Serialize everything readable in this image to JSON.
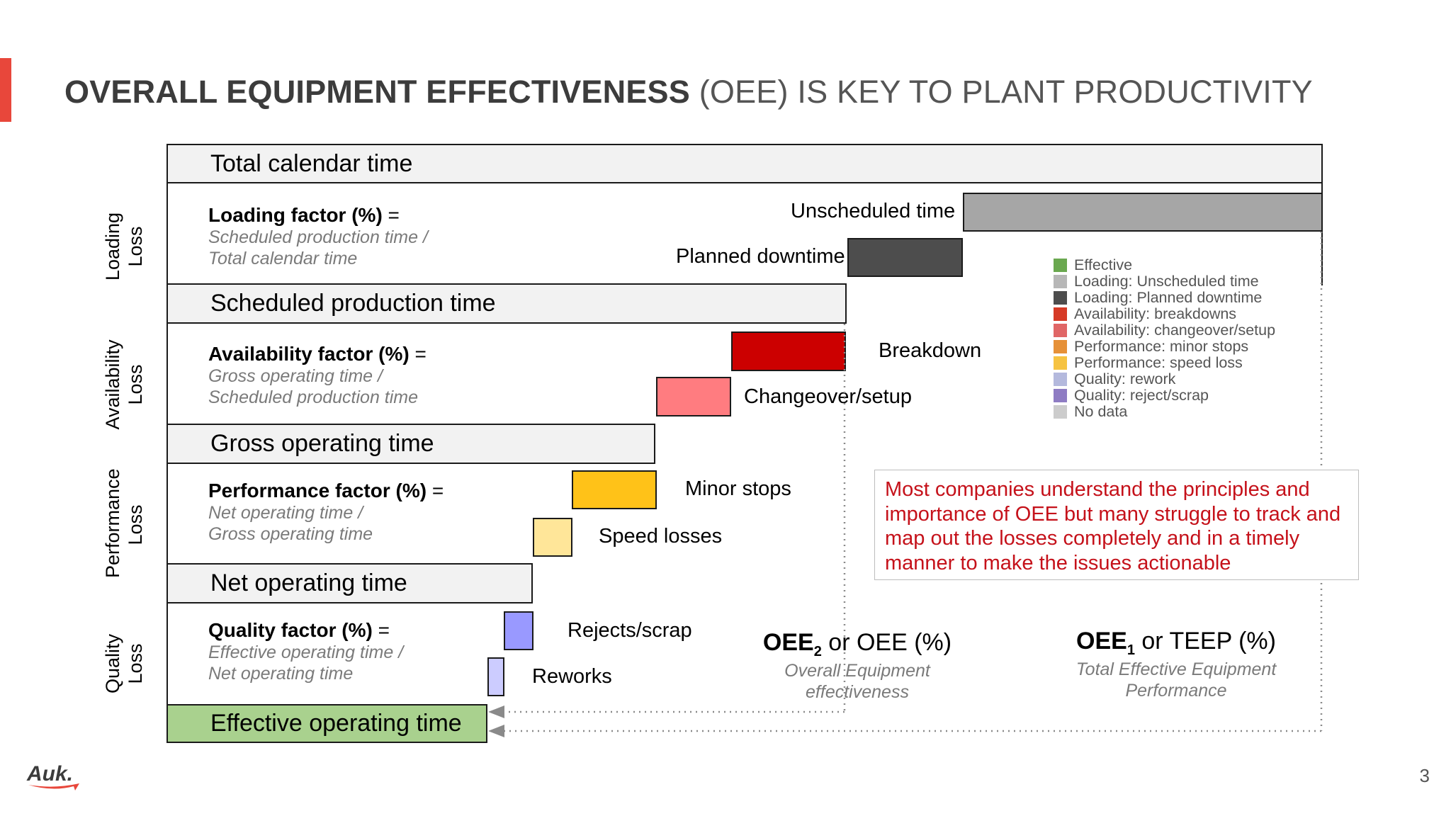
{
  "header": {
    "title_bold": "OVERALL EQUIPMENT EFFECTIVENESS",
    "title_light": "(OEE) IS KEY TO PLANT PRODUCTIVITY"
  },
  "loss_labels": [
    {
      "line1": "Loading",
      "line2": "Loss"
    },
    {
      "line1": "Availability",
      "line2": "Loss"
    },
    {
      "line1": "Performance",
      "line2": "Loss"
    },
    {
      "line1": "Quality",
      "line2": "Loss"
    }
  ],
  "bars": {
    "total_calendar": "Total calendar time",
    "scheduled_production": "Scheduled production time",
    "gross_operating": "Gross operating time",
    "net_operating": "Net operating time",
    "effective_operating": "Effective operating time"
  },
  "factors": {
    "loading": {
      "title": "Loading factor (%)",
      "eq": " =",
      "line1": "Scheduled production time /",
      "line2": "Total calendar time"
    },
    "availability": {
      "title": "Availability factor (%)",
      "eq": " =",
      "line1": "Gross operating time /",
      "line2": "Scheduled production time"
    },
    "performance": {
      "title": "Performance factor (%)",
      "eq": " =",
      "line1": "Net operating time /",
      "line2": "Gross operating time"
    },
    "quality": {
      "title": "Quality factor (%)",
      "eq": " =",
      "line1": "Effective operating time /",
      "line2": "Net operating time"
    }
  },
  "losses": {
    "unscheduled": "Unscheduled time",
    "planned_downtime": "Planned downtime",
    "breakdown": "Breakdown",
    "changeover": "Changeover/setup",
    "minor_stops": "Minor stops",
    "speed_losses": "Speed losses",
    "rejects": "Rejects/scrap",
    "reworks": "Reworks"
  },
  "legend": [
    {
      "label": "Effective",
      "color": "#6aa84f"
    },
    {
      "label": "Loading: Unscheduled time",
      "color": "#b7b7b7"
    },
    {
      "label": "Loading: Planned downtime",
      "color": "#4d4d4d"
    },
    {
      "label": "Availability: breakdowns",
      "color": "#d63a26"
    },
    {
      "label": "Availability: changeover/setup",
      "color": "#e06666"
    },
    {
      "label": "Performance: minor stops",
      "color": "#e69138"
    },
    {
      "label": "Performance: speed loss",
      "color": "#f6c342"
    },
    {
      "label": "Quality: rework",
      "color": "#b4b9dd"
    },
    {
      "label": "Quality: reject/scrap",
      "color": "#8e7cc3"
    },
    {
      "label": "No data",
      "color": "#cccccc"
    }
  ],
  "colors": {
    "unscheduled": "#a6a6a6",
    "planned_downtime": "#4d4d4d",
    "breakdown": "#cc0000",
    "changeover": "#ff7c80",
    "minor_stops": "#ffc218",
    "speed_losses": "#ffe699",
    "rejects": "#9999ff",
    "reworks": "#ccccff",
    "effective": "#a9d18e",
    "accent": "#e8473b",
    "callout_text": "#c5111a"
  },
  "callout": "Most companies understand the principles and importance of OEE but many struggle to track and map out the losses completely and in a timely manner to make the issues actionable",
  "oee2": {
    "prefix": "OEE",
    "sub": "2",
    "rest": " or OEE (%)",
    "line1": "Overall Equipment",
    "line2": "effectiveness"
  },
  "oee1": {
    "prefix": "OEE",
    "sub": "1",
    "rest": " or TEEP (%)",
    "line1": "Total Effective Equipment",
    "line2": "Performance"
  },
  "logo_text": "Auk.",
  "page_number": "3"
}
